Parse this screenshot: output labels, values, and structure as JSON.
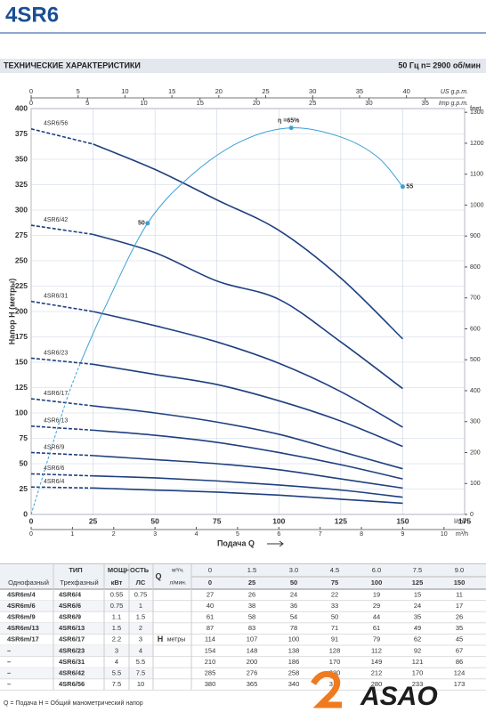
{
  "header": {
    "title": "4SR6",
    "section": "ТЕХНИЧЕСКИЕ ХАРАКТЕРИСТИКИ",
    "conditions": "50 Гц   n= 2900 об/мин"
  },
  "chart_data": {
    "type": "line",
    "ylabel": "Напор H (метры)",
    "xlabel": "Подача Q",
    "xunit": "l/min",
    "x": [
      0,
      25,
      50,
      75,
      100,
      125,
      150
    ],
    "xlim": [
      0,
      175
    ],
    "xticks": [
      0,
      25,
      50,
      75,
      100,
      125,
      150,
      175
    ],
    "ylim": [
      0,
      400
    ],
    "yticks": [
      0,
      25,
      50,
      75,
      100,
      125,
      150,
      175,
      200,
      225,
      250,
      275,
      300,
      325,
      350,
      375,
      400
    ],
    "grid": true,
    "color": "#1f3f7f",
    "series": [
      {
        "name": "4SR6/4",
        "values": [
          27,
          26,
          24,
          22,
          19,
          15,
          11
        ]
      },
      {
        "name": "4SR6/6",
        "values": [
          40,
          38,
          36,
          33,
          29,
          24,
          17
        ]
      },
      {
        "name": "4SR6/9",
        "values": [
          61,
          58,
          54,
          50,
          44,
          35,
          26
        ]
      },
      {
        "name": "4SR6/13",
        "values": [
          87,
          83,
          78,
          71,
          61,
          49,
          35
        ]
      },
      {
        "name": "4SR6/17",
        "values": [
          114,
          107,
          100,
          91,
          79,
          62,
          45
        ]
      },
      {
        "name": "4SR6/23",
        "values": [
          154,
          148,
          138,
          128,
          112,
          92,
          67
        ]
      },
      {
        "name": "4SR6/31",
        "values": [
          210,
          200,
          186,
          170,
          149,
          121,
          86
        ]
      },
      {
        "name": "4SR6/42",
        "values": [
          285,
          276,
          258,
          230,
          212,
          170,
          124
        ]
      },
      {
        "name": "4SR6/56",
        "values": [
          380,
          365,
          340,
          310,
          280,
          233,
          173
        ]
      }
    ],
    "efficiency": {
      "color": "#3a9fd6",
      "x": [
        0,
        5,
        10,
        15,
        20,
        30,
        47,
        65,
        85,
        105,
        125,
        140,
        150
      ],
      "values": [
        0,
        40,
        80,
        118,
        150,
        205,
        287,
        335,
        368,
        381,
        372,
        352,
        323
      ],
      "point_labels": [
        null,
        null,
        null,
        null,
        null,
        null,
        "50",
        null,
        null,
        "η =65%",
        null,
        null,
        "55"
      ]
    },
    "top_axes": [
      {
        "unit": "US g.p.m.",
        "xlim": [
          0,
          46.2
        ],
        "xticks": [
          0,
          5,
          10,
          15,
          20,
          25,
          30,
          35,
          40
        ]
      },
      {
        "unit": "Imp g.p.m.",
        "xlim": [
          0,
          38.5
        ],
        "xticks": [
          0,
          5,
          10,
          15,
          20,
          25,
          30,
          35
        ]
      }
    ],
    "bottom_axis2": {
      "unit": "m³/h",
      "xlim": [
        0,
        10.5
      ],
      "xticks": [
        0,
        1,
        2,
        3,
        4,
        5,
        6,
        7,
        8,
        9,
        10
      ]
    },
    "y2unit": "feet",
    "y2lim": [
      0,
      1312
    ],
    "y2ticks": [
      0,
      100,
      200,
      300,
      400,
      500,
      600,
      700,
      800,
      900,
      1000,
      1100,
      1200,
      1300
    ]
  },
  "table": {
    "type": "ТИП",
    "power": "МОЩНОСТЬ",
    "single": "Однофазный",
    "three": "Трехфазный",
    "kw": "кВт",
    "hp": "ЛС",
    "q": "Q",
    "m3h": "м³/ч.",
    "lmin": "л/мин.",
    "h": "H",
    "hunit": "метры",
    "q_m3h": [
      "0",
      "1.5",
      "3.0",
      "4.5",
      "6.0",
      "7.5",
      "9.0"
    ],
    "rows": [
      [
        "4SR6m/4",
        "4SR6/4",
        "0.55",
        "0.75"
      ],
      [
        "4SR6m/6",
        "4SR6/6",
        "0.75",
        "1"
      ],
      [
        "4SR6m/9",
        "4SR6/9",
        "1.1",
        "1.5"
      ],
      [
        "4SR6m/13",
        "4SR6/13",
        "1.5",
        "2"
      ],
      [
        "4SR6m/17",
        "4SR6/17",
        "2.2",
        "3"
      ],
      [
        "–",
        "4SR6/23",
        "3",
        "4"
      ],
      [
        "–",
        "4SR6/31",
        "4",
        "5.5"
      ],
      [
        "–",
        "4SR6/42",
        "5.5",
        "7.5"
      ],
      [
        "–",
        "4SR6/56",
        "7.5",
        "10"
      ]
    ]
  },
  "footer": {
    "note": "Q = Подача   H = Общий манометрический напор",
    "logo": "ASAO"
  }
}
